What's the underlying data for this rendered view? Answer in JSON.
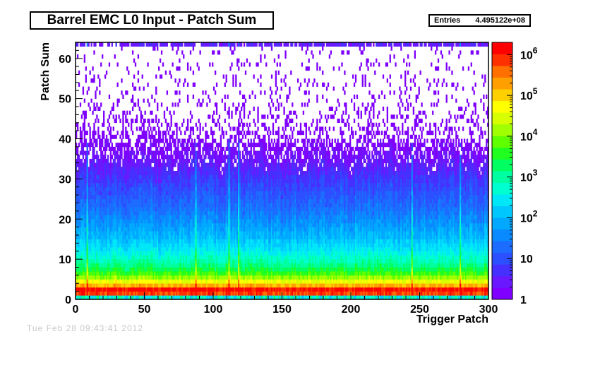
{
  "chart_data": {
    "type": "heatmap",
    "title": "Barrel EMC L0 Input - Patch Sum",
    "stats": {
      "label": "Entries",
      "value": "4.495122e+08"
    },
    "xlabel": "Trigger Patch",
    "ylabel": "Patch Sum",
    "xlim": [
      0,
      300
    ],
    "ylim": [
      0,
      64
    ],
    "xticks": [
      0,
      50,
      100,
      150,
      200,
      250,
      300
    ],
    "yticks": [
      0,
      10,
      20,
      30,
      40,
      50,
      60
    ],
    "z_scale": "log",
    "zlim": [
      1,
      2000000
    ],
    "zticks": [
      {
        "value": 1,
        "base": "1",
        "exp": ""
      },
      {
        "value": 10,
        "base": "10",
        "exp": ""
      },
      {
        "value": 100,
        "base": "10",
        "exp": "2"
      },
      {
        "value": 1000,
        "base": "10",
        "exp": "3"
      },
      {
        "value": 10000,
        "base": "10",
        "exp": "4"
      },
      {
        "value": 100000,
        "base": "10",
        "exp": "5"
      },
      {
        "value": 1000000,
        "base": "10",
        "exp": "6"
      }
    ],
    "palette": [
      "#7f00ff",
      "#6a18ff",
      "#4630ff",
      "#2c50ff",
      "#1c6cff",
      "#0a8aff",
      "#00a8ff",
      "#00c8ff",
      "#00e8f8",
      "#00ffd0",
      "#00ffa0",
      "#00ff60",
      "#20ff20",
      "#60ff00",
      "#a0ff00",
      "#d8ff00",
      "#ffff00",
      "#ffd000",
      "#ffa000",
      "#ff7000",
      "#ff3000",
      "#ff0000"
    ],
    "row_profile_log10": [
      3.3,
      5.8,
      6.1,
      5.2,
      4.6,
      4.1,
      3.7,
      3.4,
      3.15,
      2.95,
      2.75,
      2.6,
      2.45,
      2.3,
      2.2,
      2.05,
      1.95,
      1.85,
      1.75,
      1.65,
      1.55,
      1.45,
      1.35,
      1.27,
      1.2,
      1.12,
      1.05,
      0.97,
      0.9,
      0.82,
      0.74,
      0.66,
      0.58,
      0.5,
      0.42,
      0.34,
      0.27,
      0.2,
      0.14,
      0.08,
      0.03,
      0.0,
      0.0,
      0.0,
      0.0,
      0.0,
      0.0,
      0.0,
      0.0,
      0.0,
      0.0,
      0.0,
      0.0,
      0.0,
      0.0,
      0.0,
      0.0,
      0.0,
      0.0,
      0.0,
      0.0,
      0.0,
      0.0,
      0.5
    ],
    "row_occupancy": [
      1,
      1,
      1,
      1,
      1,
      1,
      1,
      1,
      1,
      1,
      1,
      1,
      1,
      1,
      1,
      1,
      1,
      1,
      1,
      1,
      1,
      1,
      1,
      1,
      1,
      1,
      1,
      1,
      1,
      1,
      1,
      0.98,
      0.95,
      0.9,
      0.85,
      0.8,
      0.74,
      0.66,
      0.58,
      0.5,
      0.44,
      0.38,
      0.33,
      0.3,
      0.27,
      0.24,
      0.22,
      0.2,
      0.18,
      0.16,
      0.15,
      0.14,
      0.13,
      0.12,
      0.11,
      0.1,
      0.09,
      0.08,
      0.08,
      0.07,
      0.07,
      0.06,
      0.06,
      0.8
    ],
    "hot_patches": [
      8,
      87,
      111,
      118,
      244,
      279
    ]
  },
  "footer_text": "Tue Feb 28 09:43:41 2012"
}
